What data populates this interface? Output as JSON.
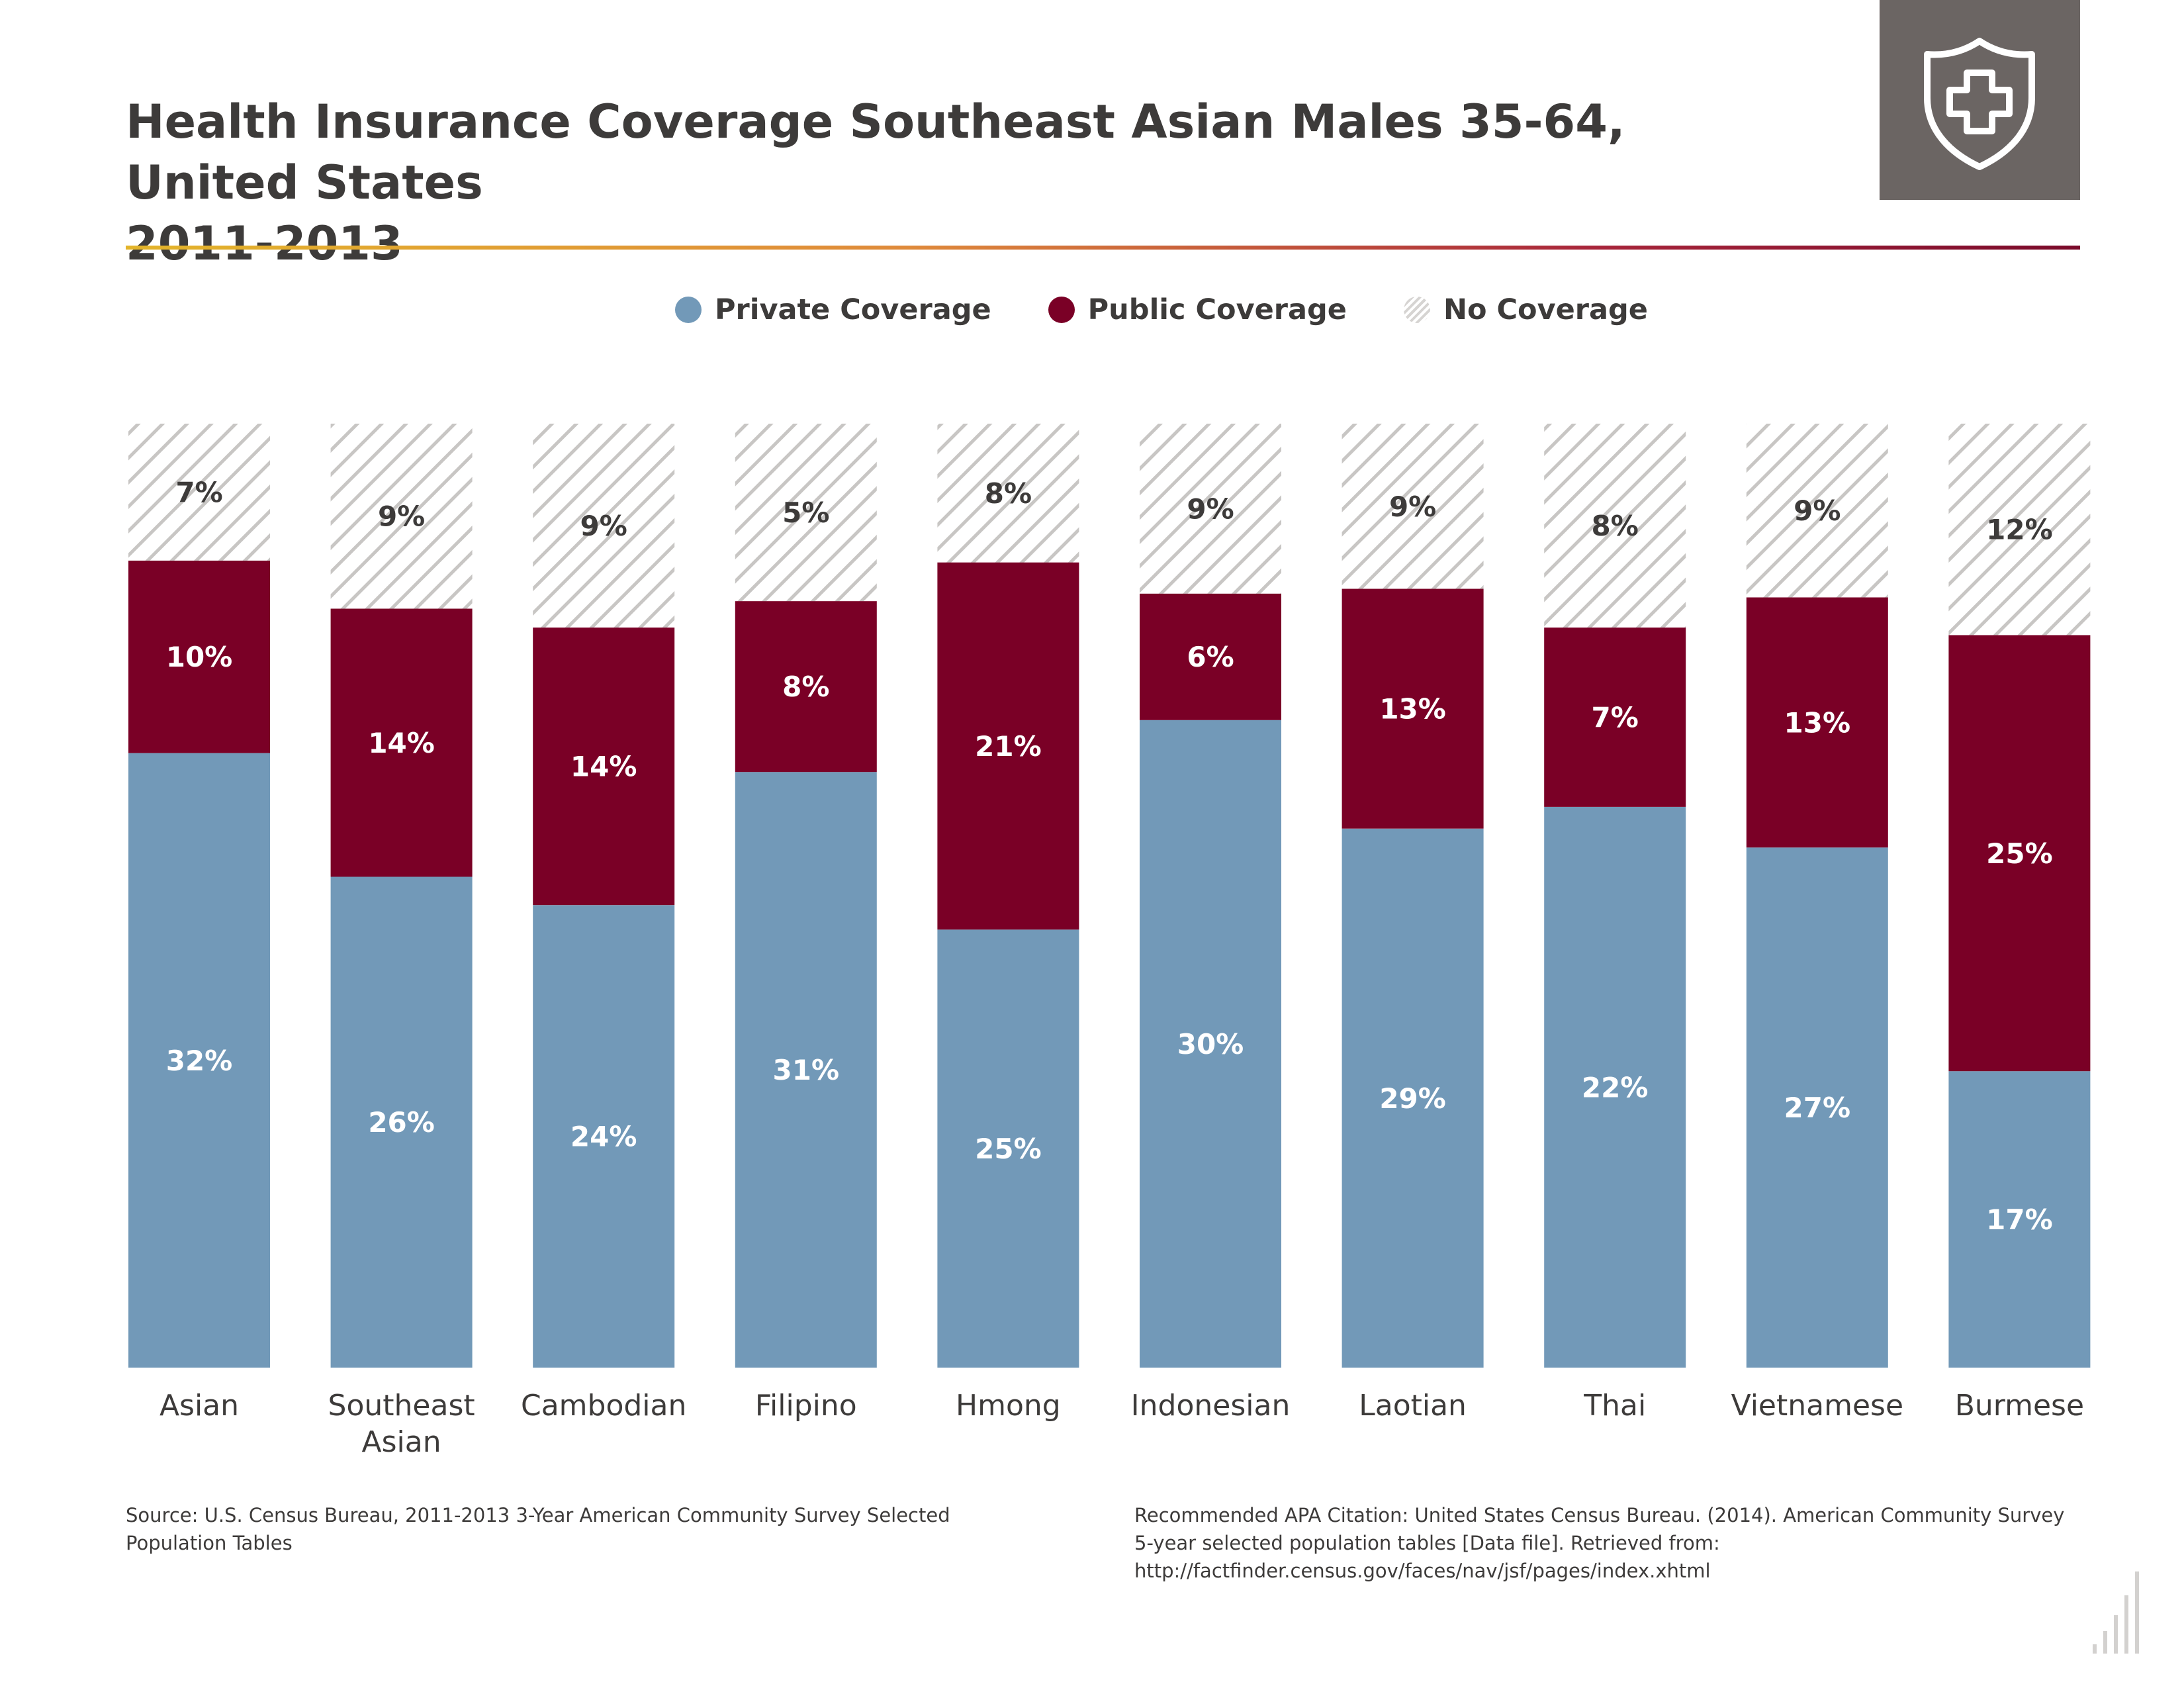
{
  "header": {
    "title_line1": "Health Insurance Coverage Southeast Asian Males 35-64, United States",
    "title_line2": "2011-2013",
    "badge_icon": "shield-plus-icon"
  },
  "colors": {
    "private": "#7299b8",
    "public": "#7a0026",
    "none_stripe": "#c8c6c4",
    "badge_bg": "#6b6563",
    "text": "#3d3b3a"
  },
  "legend": {
    "private": "Private Coverage",
    "public": "Public Coverage",
    "none": "No Coverage"
  },
  "chart_data": {
    "type": "bar",
    "stacked": true,
    "categories": [
      [
        "Asian"
      ],
      [
        "Southeast",
        "Asian"
      ],
      [
        "Cambodian"
      ],
      [
        "Filipino"
      ],
      [
        "Hmong"
      ],
      [
        "Indonesian"
      ],
      [
        "Laotian"
      ],
      [
        "Thai"
      ],
      [
        "Vietnamese"
      ],
      [
        "Burmese"
      ]
    ],
    "series": [
      {
        "name": "Private Coverage",
        "key": "private",
        "values": [
          32,
          26,
          24,
          31,
          25,
          30,
          29,
          22,
          27,
          17
        ],
        "labels": [
          "32%",
          "26%",
          "24%",
          "31%",
          "25%",
          "30%",
          "29%",
          "22%",
          "27%",
          "17%"
        ]
      },
      {
        "name": "Public Coverage",
        "key": "public",
        "values": [
          10,
          14,
          14,
          8,
          21,
          6,
          13,
          7,
          13,
          25
        ],
        "labels": [
          "10%",
          "14%",
          "14%",
          "8%",
          "21%",
          "6%",
          "13%",
          "7%",
          "13%",
          "25%"
        ]
      },
      {
        "name": "No Coverage",
        "key": "none",
        "values": [
          7,
          9,
          9,
          5,
          8,
          9,
          9,
          8,
          9,
          12
        ],
        "labels": [
          "7%",
          "9%",
          "9%",
          "5%",
          "8%",
          "9%",
          "9%",
          "8%",
          "9%",
          "12%"
        ]
      }
    ],
    "segment_shares": {
      "private": [
        0.651,
        0.52,
        0.49,
        0.631,
        0.464,
        0.686,
        0.571,
        0.594,
        0.551,
        0.314
      ],
      "public": [
        0.204,
        0.284,
        0.294,
        0.181,
        0.389,
        0.134,
        0.254,
        0.19,
        0.265,
        0.462
      ],
      "none": [
        0.145,
        0.196,
        0.216,
        0.188,
        0.147,
        0.18,
        0.175,
        0.216,
        0.184,
        0.224
      ]
    },
    "xlabel": "",
    "ylabel": "",
    "legend_position": "top-center",
    "grid": false
  },
  "footer": {
    "source": "Source: U.S. Census Bureau, 2011-2013 3-Year American Community Survey Selected Population Tables",
    "citation": "Recommended APA Citation: United States Census Bureau. (2014). American Community Survey 5-year selected population tables [Data file]. Retrieved from: http://factfinder.census.gov/faces/nav/jsf/pages/index.xhtml"
  }
}
